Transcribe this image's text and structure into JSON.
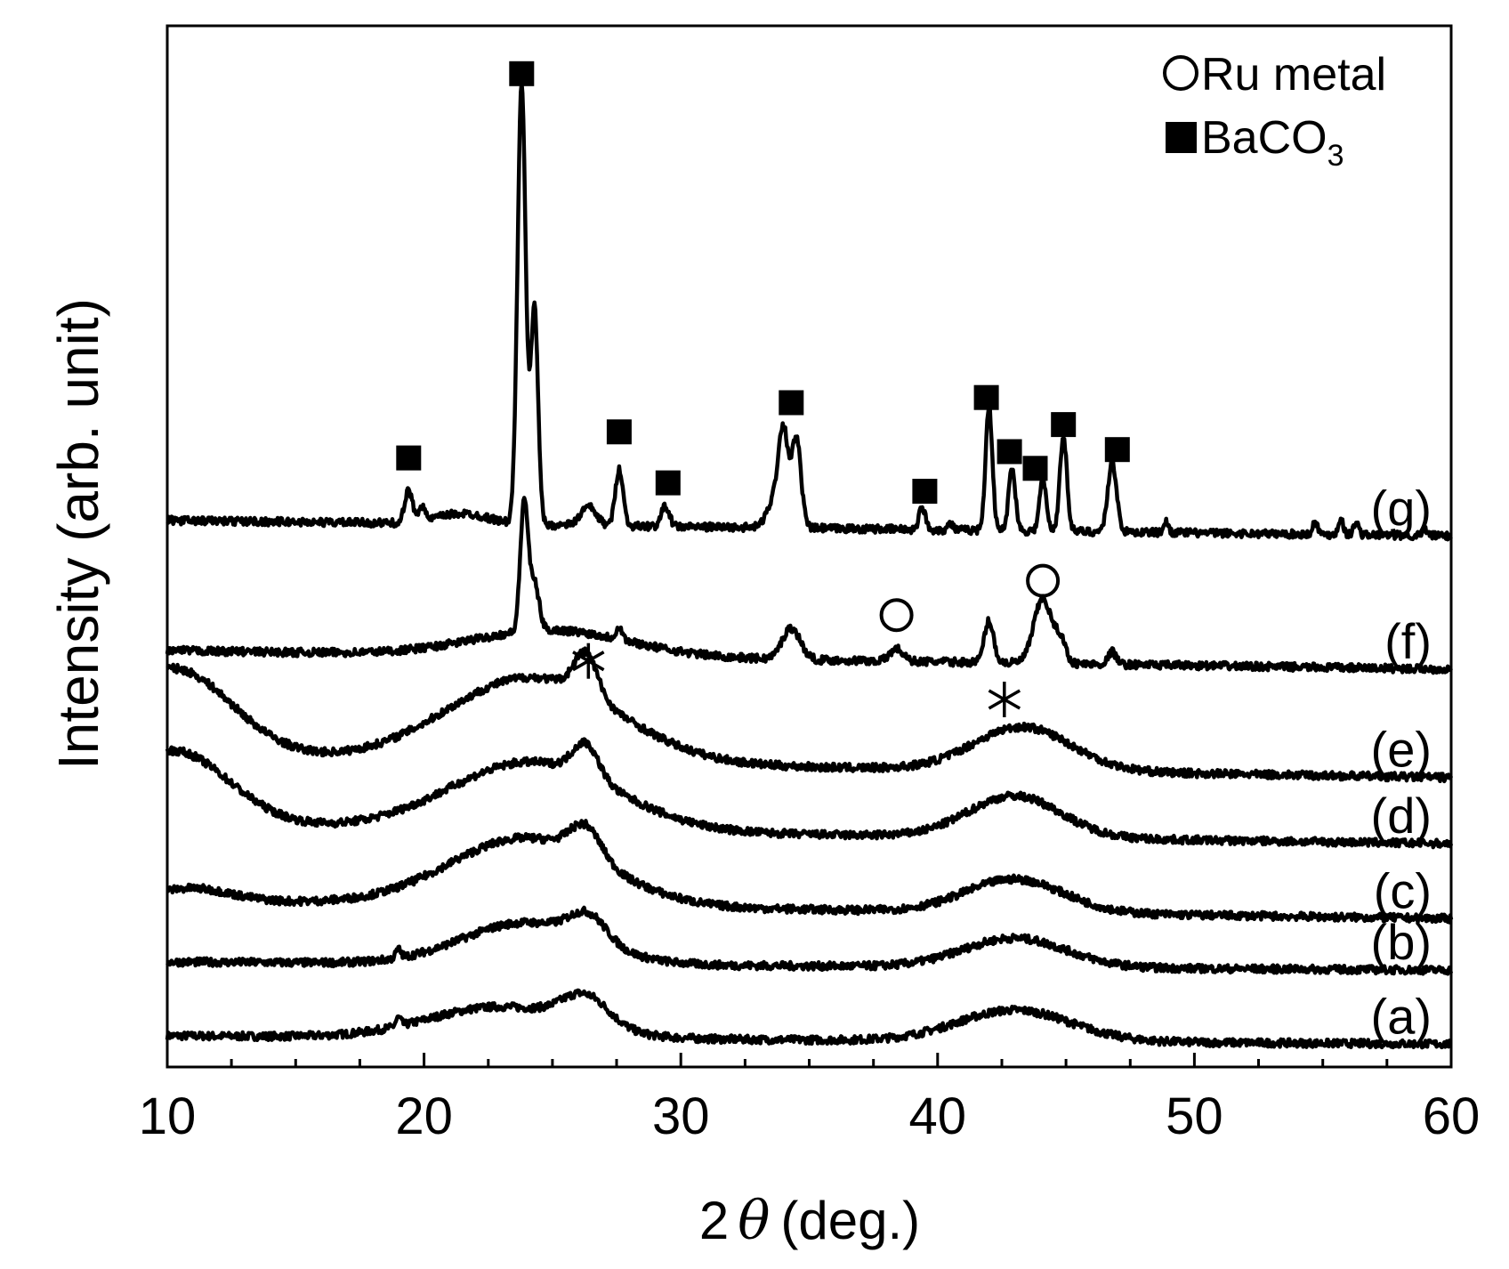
{
  "chart_data": {
    "type": "line",
    "xlabel_prefix": "2",
    "xlabel_symbol": "θ",
    "xlabel_unit": "(deg.)",
    "ylabel": "Intensity (arb. unit)",
    "xlim": [
      10,
      60
    ],
    "x_ticks": [
      10,
      20,
      30,
      40,
      50,
      60
    ],
    "x_minor_step": 2.5,
    "ylim": [
      0,
      1
    ],
    "grid": false,
    "legend_position": "top-right",
    "legend": [
      {
        "marker": "open-circle",
        "label": "Ru metal"
      },
      {
        "marker": "filled-square",
        "label_main": "BaCO",
        "label_sub": "3"
      }
    ],
    "series": [
      {
        "label": "(a)",
        "baseline": 0.03,
        "slope": 0.00016,
        "features": [
          [
            19,
            0.008,
            0.1
          ],
          [
            23,
            0.03,
            2.8
          ],
          [
            26.3,
            0.028,
            0.9
          ],
          [
            43,
            0.03,
            2.2
          ]
        ]
      },
      {
        "label": "(b)",
        "baseline": 0.101,
        "slope": 0.00016,
        "features": [
          [
            19,
            0.008,
            0.1
          ],
          [
            24,
            0.04,
            2.5
          ],
          [
            26.4,
            0.025,
            0.7
          ],
          [
            43,
            0.028,
            2.0
          ]
        ]
      },
      {
        "label": "(c)",
        "baseline": 0.16,
        "slope": 0.00035,
        "features": [
          [
            11,
            0.012,
            1.5
          ],
          [
            24,
            0.065,
            3.0
          ],
          [
            26.3,
            0.03,
            0.6
          ],
          [
            43,
            0.032,
            1.9
          ]
        ]
      },
      {
        "label": "(d)",
        "baseline": 0.232,
        "slope": 0.00035,
        "features": [
          [
            10.2,
            0.072,
            2.2
          ],
          [
            24.2,
            0.066,
            3.2
          ],
          [
            26.3,
            0.032,
            0.5
          ],
          [
            43,
            0.04,
            1.8
          ]
        ]
      },
      {
        "label": "(e)",
        "baseline": 0.298,
        "slope": 0.0004,
        "features": [
          [
            10.2,
            0.085,
            2.3
          ],
          [
            24.2,
            0.082,
            3.3
          ],
          [
            26.3,
            0.04,
            0.45
          ],
          [
            43.3,
            0.042,
            1.9
          ]
        ]
      },
      {
        "label": "(f)",
        "baseline": 0.4,
        "slope": 0.00036,
        "features": [
          [
            23.9,
            0.125,
            0.15
          ],
          [
            24.3,
            0.045,
            0.18
          ],
          [
            27.6,
            0.012,
            0.12
          ],
          [
            25,
            0.025,
            3.0
          ],
          [
            34.3,
            0.03,
            0.35
          ],
          [
            38.4,
            0.012,
            0.25
          ],
          [
            42,
            0.04,
            0.18
          ],
          [
            44.1,
            0.062,
            0.35
          ],
          [
            44.8,
            0.02,
            0.2
          ],
          [
            46.8,
            0.012,
            0.15
          ]
        ]
      },
      {
        "label": "(g)",
        "baseline": 0.525,
        "slope": 0.0003,
        "features": [
          [
            19.4,
            0.03,
            0.15
          ],
          [
            19.9,
            0.015,
            0.12
          ],
          [
            21.5,
            0.01,
            1.0
          ],
          [
            23.8,
            0.42,
            0.16
          ],
          [
            24.3,
            0.21,
            0.14
          ],
          [
            26.4,
            0.018,
            0.3
          ],
          [
            27.6,
            0.055,
            0.15
          ],
          [
            29.4,
            0.02,
            0.15
          ],
          [
            34.0,
            0.08,
            0.18
          ],
          [
            34.5,
            0.085,
            0.18
          ],
          [
            33.7,
            0.03,
            0.3
          ],
          [
            39.4,
            0.022,
            0.12
          ],
          [
            40.5,
            0.006,
            0.1
          ],
          [
            42.0,
            0.12,
            0.13
          ],
          [
            42.9,
            0.06,
            0.13
          ],
          [
            44.1,
            0.05,
            0.13
          ],
          [
            44.9,
            0.09,
            0.14
          ],
          [
            46.8,
            0.067,
            0.17
          ],
          [
            48.9,
            0.01,
            0.1
          ],
          [
            54.7,
            0.012,
            0.1
          ],
          [
            55.7,
            0.015,
            0.1
          ],
          [
            56.3,
            0.012,
            0.1
          ],
          [
            59.0,
            0.005,
            0.1
          ]
        ]
      }
    ],
    "annotations": [
      {
        "marker": "filled-square",
        "x": 19.4,
        "y": 0.585
      },
      {
        "marker": "filled-square",
        "x": 23.8,
        "y": 0.954
      },
      {
        "marker": "filled-square",
        "x": 27.6,
        "y": 0.61
      },
      {
        "marker": "filled-square",
        "x": 29.5,
        "y": 0.561
      },
      {
        "marker": "filled-square",
        "x": 34.3,
        "y": 0.638
      },
      {
        "marker": "filled-square",
        "x": 39.5,
        "y": 0.553
      },
      {
        "marker": "filled-square",
        "x": 41.9,
        "y": 0.643
      },
      {
        "marker": "filled-square",
        "x": 42.8,
        "y": 0.591
      },
      {
        "marker": "filled-square",
        "x": 43.8,
        "y": 0.575
      },
      {
        "marker": "filled-square",
        "x": 44.9,
        "y": 0.617
      },
      {
        "marker": "filled-square",
        "x": 47.0,
        "y": 0.593
      },
      {
        "marker": "open-circle",
        "x": 38.4,
        "y": 0.434
      },
      {
        "marker": "open-circle",
        "x": 44.1,
        "y": 0.467
      },
      {
        "marker": "asterisk",
        "x": 26.4,
        "y": 0.39
      },
      {
        "marker": "asterisk",
        "x": 42.6,
        "y": 0.353
      }
    ]
  }
}
